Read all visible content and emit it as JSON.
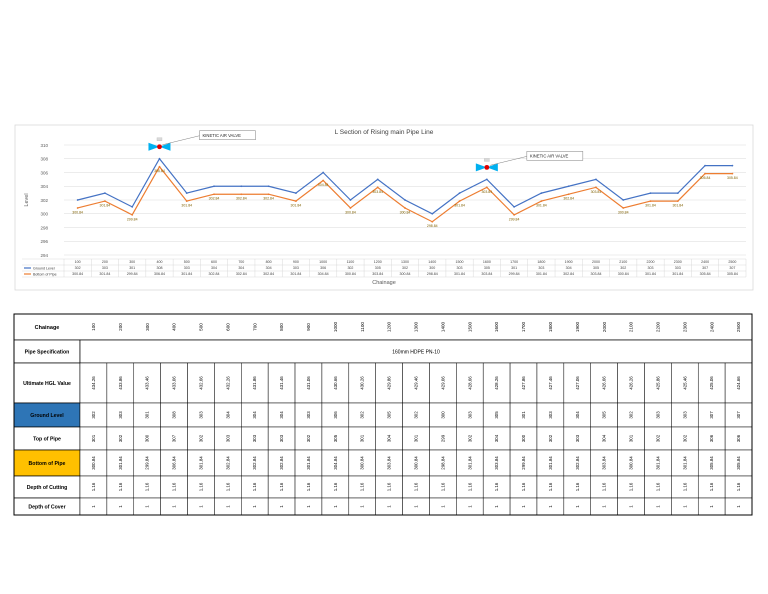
{
  "chart_data": {
    "type": "line",
    "title": "L Section of Rising main Pipe Line",
    "xlabel": "Chainage",
    "ylabel": "Level",
    "ylim": [
      294,
      310
    ],
    "yticks": [
      294,
      296,
      298,
      300,
      302,
      304,
      306,
      308,
      310
    ],
    "grid": true,
    "categories": [
      "100",
      "200",
      "300",
      "400",
      "500",
      "600",
      "700",
      "800",
      "900",
      "1000",
      "1100",
      "1200",
      "1300",
      "1400",
      "1500",
      "1600",
      "1700",
      "1800",
      "1900",
      "2000",
      "2100",
      "2200",
      "2300",
      "2400",
      "2500"
    ],
    "series": [
      {
        "name": "Ground Level",
        "color": "#4472C4",
        "values": [
          302,
          303,
          301,
          308,
          303,
          304,
          304,
          304,
          303,
          306,
          302,
          305,
          302,
          300,
          303,
          305,
          301,
          303,
          304,
          305,
          302,
          303,
          303,
          307,
          307
        ]
      },
      {
        "name": "Bottom of Pipe",
        "color": "#ED7D31",
        "values": [
          300.84,
          301.84,
          299.84,
          306.84,
          301.84,
          302.84,
          302.84,
          302.84,
          301.84,
          304.84,
          300.84,
          303.84,
          300.84,
          298.84,
          301.84,
          303.84,
          299.84,
          301.84,
          302.84,
          303.84,
          300.84,
          301.84,
          301.84,
          305.84,
          305.84
        ]
      }
    ],
    "table_values": {
      "ground": [
        "302",
        "303",
        "301",
        "308",
        "303",
        "304",
        "304",
        "304",
        "303",
        "306",
        "302",
        "305",
        "302",
        "300",
        "303",
        "305",
        "301",
        "303",
        "304",
        "305",
        "302",
        "303",
        "303",
        "307",
        "307"
      ],
      "bottom": [
        "300.84",
        "301.84",
        "299.84",
        "306.84",
        "301.84",
        "302.84",
        "302.84",
        "302.84",
        "301.84",
        "304.84",
        "300.84",
        "303.84",
        "300.84",
        "298.84",
        "301.84",
        "303.84",
        "299.84",
        "301.84",
        "302.84",
        "303.84",
        "300.84",
        "301.84",
        "301.84",
        "305.84",
        "305.84"
      ]
    },
    "annotations": [
      {
        "text": "KINETIC AIR VALVE",
        "at": "400"
      },
      {
        "text": "KINETIC AIR VALVE",
        "at": "1600"
      }
    ]
  },
  "profile_table": {
    "chainage_label": "Chainage",
    "chainages": [
      "100",
      "200",
      "300",
      "400",
      "500",
      "600",
      "700",
      "800",
      "900",
      "1000",
      "1100",
      "1200",
      "1300",
      "1400",
      "1500",
      "1600",
      "1700",
      "1800",
      "1900",
      "2000",
      "2100",
      "2200",
      "2300",
      "2400",
      "2500"
    ],
    "rows": [
      {
        "key": "spec",
        "label": "Pipe Specification",
        "span_text": "160mm HDPE PN-10",
        "bg": "#ffffff"
      },
      {
        "key": "hgl",
        "label": "Ultimate HGL Value",
        "bg": "#ffffff",
        "values": [
          "434.26",
          "433.86",
          "433.46",
          "433.06",
          "432.66",
          "432.26",
          "431.86",
          "431.46",
          "431.06",
          "430.66",
          "430.26",
          "429.86",
          "429.46",
          "429.06",
          "428.66",
          "428.26",
          "427.86",
          "427.46",
          "427.06",
          "426.66",
          "426.26",
          "425.86",
          "425.46",
          "425.06",
          "424.66"
        ]
      },
      {
        "key": "ground",
        "label": "Ground Level",
        "bg": "#2E75B6",
        "values": [
          "302",
          "303",
          "301",
          "308",
          "303",
          "304",
          "304",
          "304",
          "303",
          "306",
          "302",
          "305",
          "302",
          "300",
          "303",
          "305",
          "301",
          "303",
          "304",
          "305",
          "302",
          "303",
          "303",
          "307",
          "307"
        ]
      },
      {
        "key": "top",
        "label": "Top of Pipe",
        "bg": "#ffffff",
        "values": [
          "301",
          "302",
          "300",
          "307",
          "302",
          "303",
          "303",
          "303",
          "302",
          "305",
          "301",
          "304",
          "301",
          "299",
          "302",
          "304",
          "300",
          "302",
          "303",
          "304",
          "301",
          "302",
          "302",
          "306",
          "306"
        ]
      },
      {
        "key": "bottom",
        "label": "Bottom of Pipe",
        "bg": "#FFC000",
        "values": [
          "300.84",
          "301.84",
          "299.84",
          "306.84",
          "301.84",
          "302.84",
          "302.84",
          "302.84",
          "301.84",
          "304.84",
          "300.84",
          "303.84",
          "300.84",
          "298.84",
          "301.84",
          "303.84",
          "299.84",
          "301.84",
          "302.84",
          "303.84",
          "300.84",
          "301.84",
          "301.84",
          "305.84",
          "305.84"
        ]
      },
      {
        "key": "cut",
        "label": "Depth of Cutting",
        "bg": "#ffffff",
        "values": [
          "1.16",
          "1.16",
          "1.16",
          "1.16",
          "1.16",
          "1.16",
          "1.16",
          "1.16",
          "1.16",
          "1.16",
          "1.16",
          "1.16",
          "1.16",
          "1.16",
          "1.16",
          "1.16",
          "1.16",
          "1.16",
          "1.16",
          "1.16",
          "1.16",
          "1.16",
          "1.16",
          "1.16",
          "1.16"
        ]
      },
      {
        "key": "cover",
        "label": "Depth of Cover",
        "bg": "#ffffff",
        "values": [
          "1",
          "1",
          "1",
          "1",
          "1",
          "1",
          "1",
          "1",
          "1",
          "1",
          "1",
          "1",
          "1",
          "1",
          "1",
          "1",
          "1",
          "1",
          "1",
          "1",
          "1",
          "1",
          "1",
          "1",
          "1"
        ]
      }
    ]
  }
}
